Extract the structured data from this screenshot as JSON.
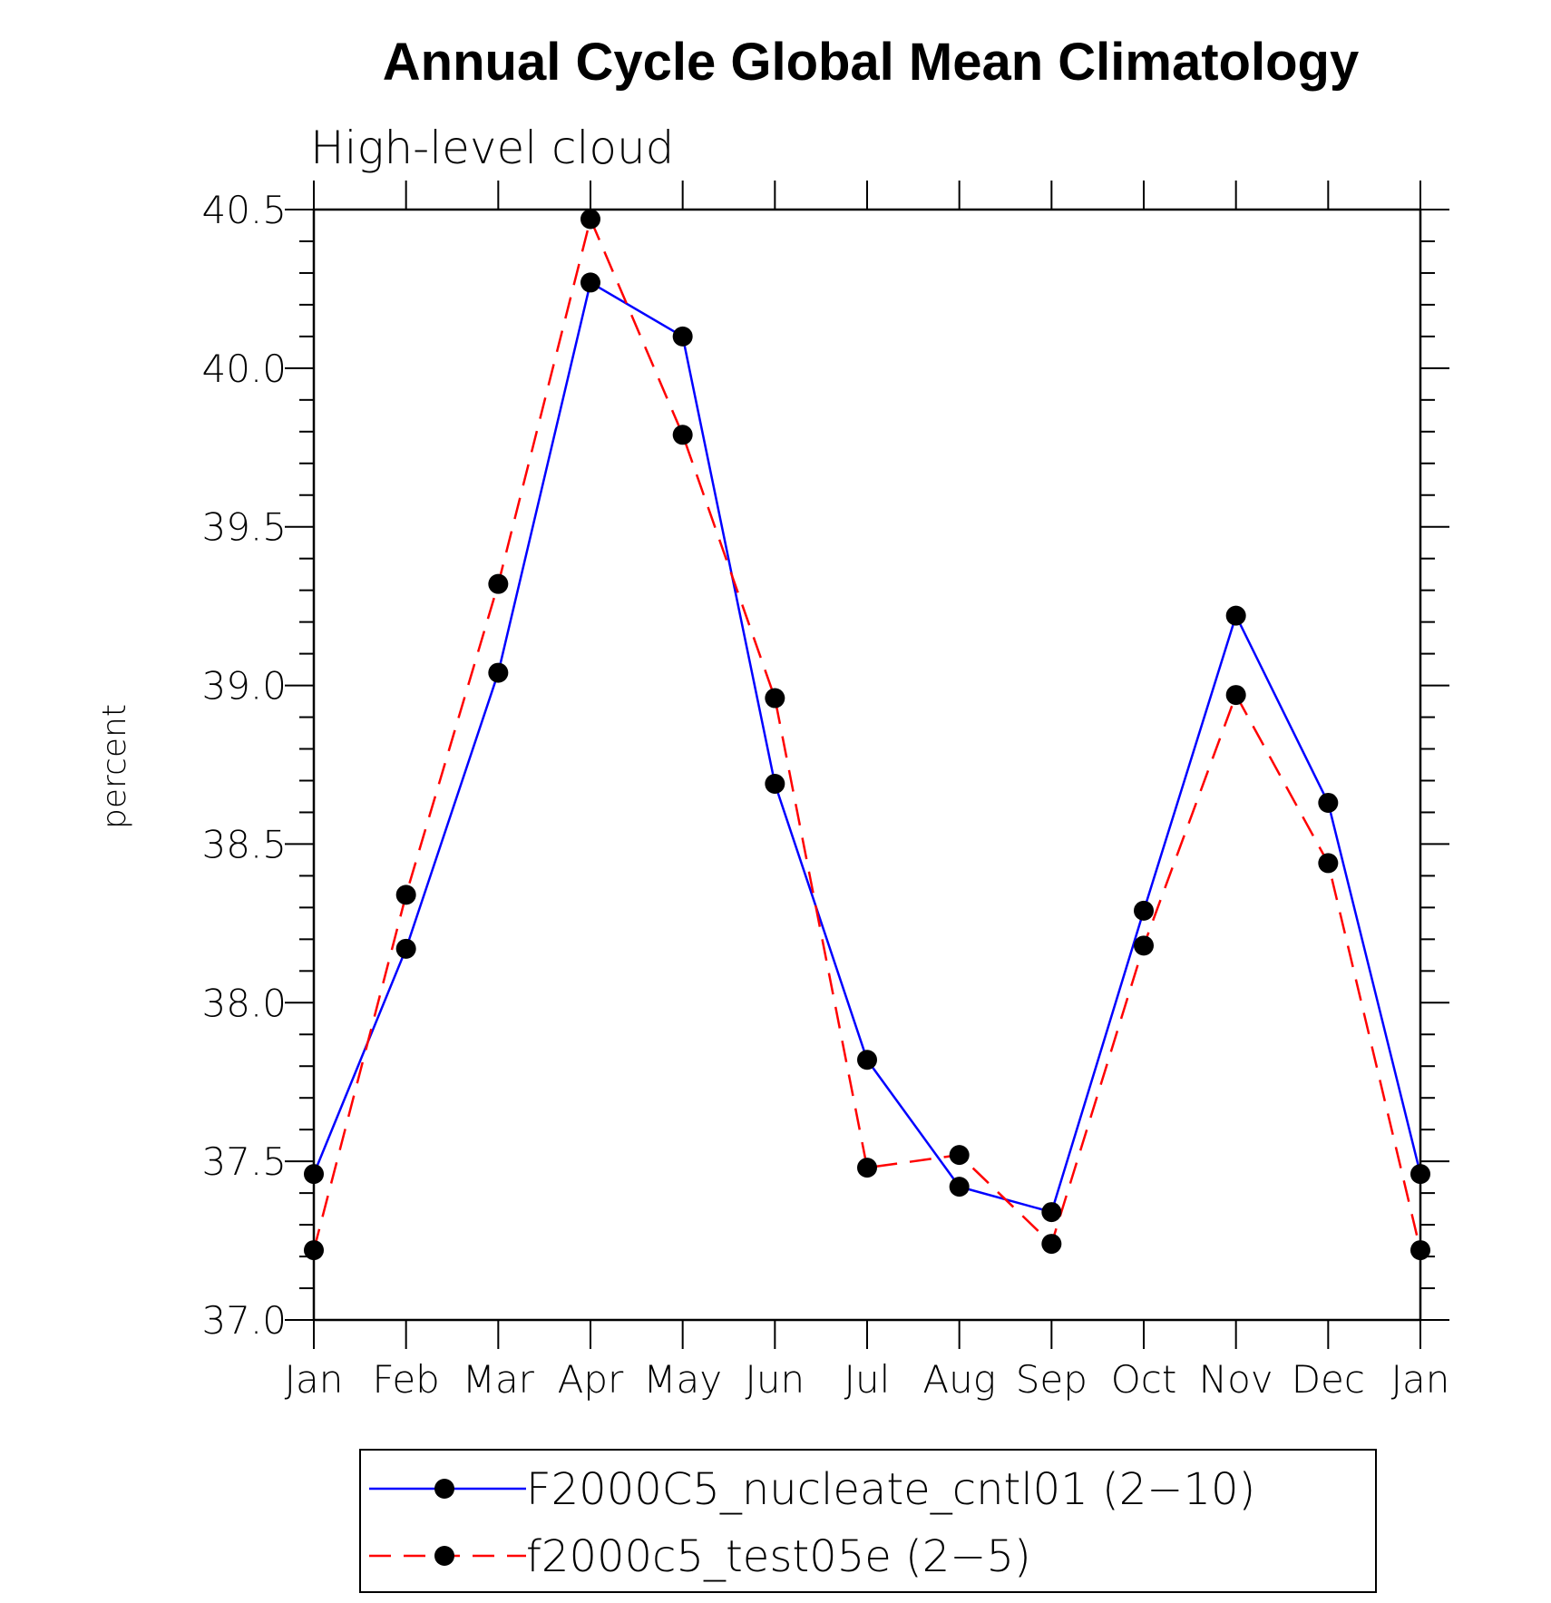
{
  "chart_data": {
    "type": "line",
    "title": "Annual Cycle Global Mean Climatology",
    "subtitle": "High-level cloud",
    "xlabel": "",
    "ylabel": "percent",
    "ylim": [
      37.0,
      40.5
    ],
    "yticks": [
      "37.0",
      "37.5",
      "38.0",
      "38.5",
      "39.0",
      "39.5",
      "40.0",
      "40.5"
    ],
    "categories": [
      "Jan",
      "Feb",
      "Mar",
      "Apr",
      "May",
      "Jun",
      "Jul",
      "Aug",
      "Sep",
      "Oct",
      "Nov",
      "Dec",
      "Jan"
    ],
    "series": [
      {
        "name": "F2000C5_nucleate_cntl01 (2−10)",
        "color": "#0000ff",
        "dash": "solid",
        "values": [
          37.46,
          38.17,
          39.04,
          40.27,
          40.1,
          38.69,
          37.82,
          37.42,
          37.34,
          38.29,
          39.22,
          38.63,
          37.46
        ]
      },
      {
        "name": "f2000c5_test05e (2−5)",
        "color": "#ff0000",
        "dash": "dashed",
        "values": [
          37.22,
          38.34,
          39.32,
          40.47,
          39.79,
          38.96,
          37.48,
          37.52,
          37.24,
          38.18,
          38.97,
          38.44,
          37.22
        ]
      }
    ],
    "legend_position": "bottom-center",
    "grid": false
  }
}
